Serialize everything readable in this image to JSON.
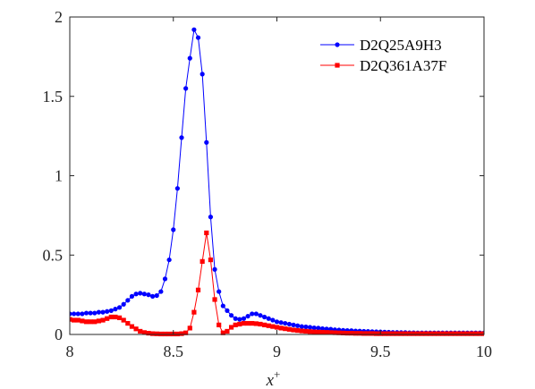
{
  "chart_data": {
    "type": "line",
    "title": "",
    "xlabel": "x",
    "xlabel_superscript": "+",
    "ylabel": "",
    "xlim": [
      8,
      10
    ],
    "ylim": [
      0,
      2
    ],
    "xticks": [
      8,
      8.5,
      9,
      9.5,
      10
    ],
    "yticks": [
      0,
      0.5,
      1,
      1.5,
      2
    ],
    "xtick_labels": [
      "8",
      "8.5",
      "9",
      "9.5",
      "10"
    ],
    "ytick_labels": [
      "0",
      "0.5",
      "1",
      "1.5",
      "2"
    ],
    "grid": false,
    "legend_position": "top-right",
    "series": [
      {
        "name": "D2Q25A9H3",
        "color": "#0000ff",
        "marker": "circle",
        "x": [
          8.0,
          8.02,
          8.04,
          8.06,
          8.08,
          8.1,
          8.12,
          8.14,
          8.16,
          8.18,
          8.2,
          8.22,
          8.24,
          8.26,
          8.28,
          8.3,
          8.32,
          8.34,
          8.36,
          8.38,
          8.4,
          8.42,
          8.44,
          8.46,
          8.48,
          8.5,
          8.52,
          8.54,
          8.56,
          8.58,
          8.6,
          8.62,
          8.64,
          8.66,
          8.68,
          8.7,
          8.72,
          8.74,
          8.76,
          8.78,
          8.8,
          8.82,
          8.84,
          8.86,
          8.88,
          8.9,
          8.92,
          8.94,
          8.96,
          8.98,
          9.0,
          9.02,
          9.04,
          9.06,
          9.08,
          9.1,
          9.12,
          9.14,
          9.16,
          9.18,
          9.2,
          9.22,
          9.24,
          9.26,
          9.28,
          9.3,
          9.32,
          9.34,
          9.36,
          9.38,
          9.4,
          9.42,
          9.44,
          9.46,
          9.48,
          9.5,
          9.52,
          9.54,
          9.56,
          9.58,
          9.6,
          9.62,
          9.64,
          9.66,
          9.68,
          9.7,
          9.72,
          9.74,
          9.76,
          9.78,
          9.8,
          9.82,
          9.84,
          9.86,
          9.88,
          9.9,
          9.92,
          9.94,
          9.96,
          9.98,
          10.0
        ],
        "y": [
          0.13,
          0.13,
          0.13,
          0.13,
          0.135,
          0.135,
          0.135,
          0.14,
          0.14,
          0.145,
          0.15,
          0.16,
          0.17,
          0.19,
          0.215,
          0.24,
          0.255,
          0.26,
          0.255,
          0.25,
          0.24,
          0.245,
          0.27,
          0.35,
          0.47,
          0.66,
          0.92,
          1.24,
          1.55,
          1.74,
          1.92,
          1.87,
          1.64,
          1.21,
          0.74,
          0.41,
          0.27,
          0.18,
          0.15,
          0.12,
          0.1,
          0.095,
          0.1,
          0.115,
          0.13,
          0.13,
          0.12,
          0.11,
          0.1,
          0.09,
          0.08,
          0.075,
          0.07,
          0.065,
          0.06,
          0.055,
          0.05,
          0.048,
          0.045,
          0.042,
          0.04,
          0.037,
          0.035,
          0.033,
          0.03,
          0.028,
          0.026,
          0.025,
          0.024,
          0.022,
          0.021,
          0.02,
          0.019,
          0.018,
          0.017,
          0.016,
          0.015,
          0.014,
          0.013,
          0.013,
          0.012,
          0.012,
          0.011,
          0.011,
          0.01,
          0.01,
          0.01,
          0.01,
          0.01,
          0.01,
          0.01,
          0.01,
          0.01,
          0.01,
          0.01,
          0.01,
          0.01,
          0.01,
          0.01,
          0.01,
          0.01
        ]
      },
      {
        "name": "D2Q361A37F",
        "color": "#ff0000",
        "marker": "square",
        "x": [
          8.0,
          8.02,
          8.04,
          8.06,
          8.08,
          8.1,
          8.12,
          8.14,
          8.16,
          8.18,
          8.2,
          8.22,
          8.24,
          8.26,
          8.28,
          8.3,
          8.32,
          8.34,
          8.36,
          8.38,
          8.4,
          8.42,
          8.44,
          8.46,
          8.48,
          8.5,
          8.52,
          8.54,
          8.56,
          8.58,
          8.6,
          8.62,
          8.64,
          8.66,
          8.68,
          8.7,
          8.72,
          8.74,
          8.76,
          8.78,
          8.8,
          8.82,
          8.84,
          8.86,
          8.88,
          8.9,
          8.92,
          8.94,
          8.96,
          8.98,
          9.0,
          9.02,
          9.04,
          9.06,
          9.08,
          9.1,
          9.12,
          9.14,
          9.16,
          9.18,
          9.2,
          9.22,
          9.24,
          9.26,
          9.28,
          9.3,
          9.32,
          9.34,
          9.36,
          9.38,
          9.4,
          9.42,
          9.44,
          9.46,
          9.48,
          9.5,
          9.52,
          9.54,
          9.56,
          9.58,
          9.6,
          9.62,
          9.64,
          9.66,
          9.68,
          9.7,
          9.72,
          9.74,
          9.76,
          9.78,
          9.8,
          9.82,
          9.84,
          9.86,
          9.88,
          9.9,
          9.92,
          9.94,
          9.96,
          9.98,
          10.0
        ],
        "y": [
          0.095,
          0.09,
          0.09,
          0.085,
          0.08,
          0.08,
          0.08,
          0.085,
          0.09,
          0.1,
          0.11,
          0.11,
          0.105,
          0.09,
          0.07,
          0.05,
          0.035,
          0.02,
          0.012,
          0.008,
          0.005,
          0.004,
          0.003,
          0.003,
          0.003,
          0.003,
          0.003,
          0.005,
          0.01,
          0.04,
          0.14,
          0.28,
          0.46,
          0.64,
          0.47,
          0.22,
          0.06,
          0.01,
          0.02,
          0.045,
          0.06,
          0.065,
          0.07,
          0.07,
          0.07,
          0.068,
          0.065,
          0.06,
          0.055,
          0.05,
          0.045,
          0.04,
          0.036,
          0.032,
          0.028,
          0.025,
          0.022,
          0.02,
          0.018,
          0.016,
          0.015,
          0.014,
          0.013,
          0.012,
          0.011,
          0.01,
          0.009,
          0.008,
          0.008,
          0.007,
          0.007,
          0.006,
          0.006,
          0.006,
          0.005,
          0.005,
          0.005,
          0.005,
          0.005,
          0.005,
          0.005,
          0.005,
          0.005,
          0.005,
          0.005,
          0.005,
          0.005,
          0.005,
          0.005,
          0.005,
          0.005,
          0.005,
          0.005,
          0.005,
          0.005,
          0.005,
          0.005,
          0.005,
          0.005,
          0.005,
          0.005
        ]
      }
    ]
  }
}
